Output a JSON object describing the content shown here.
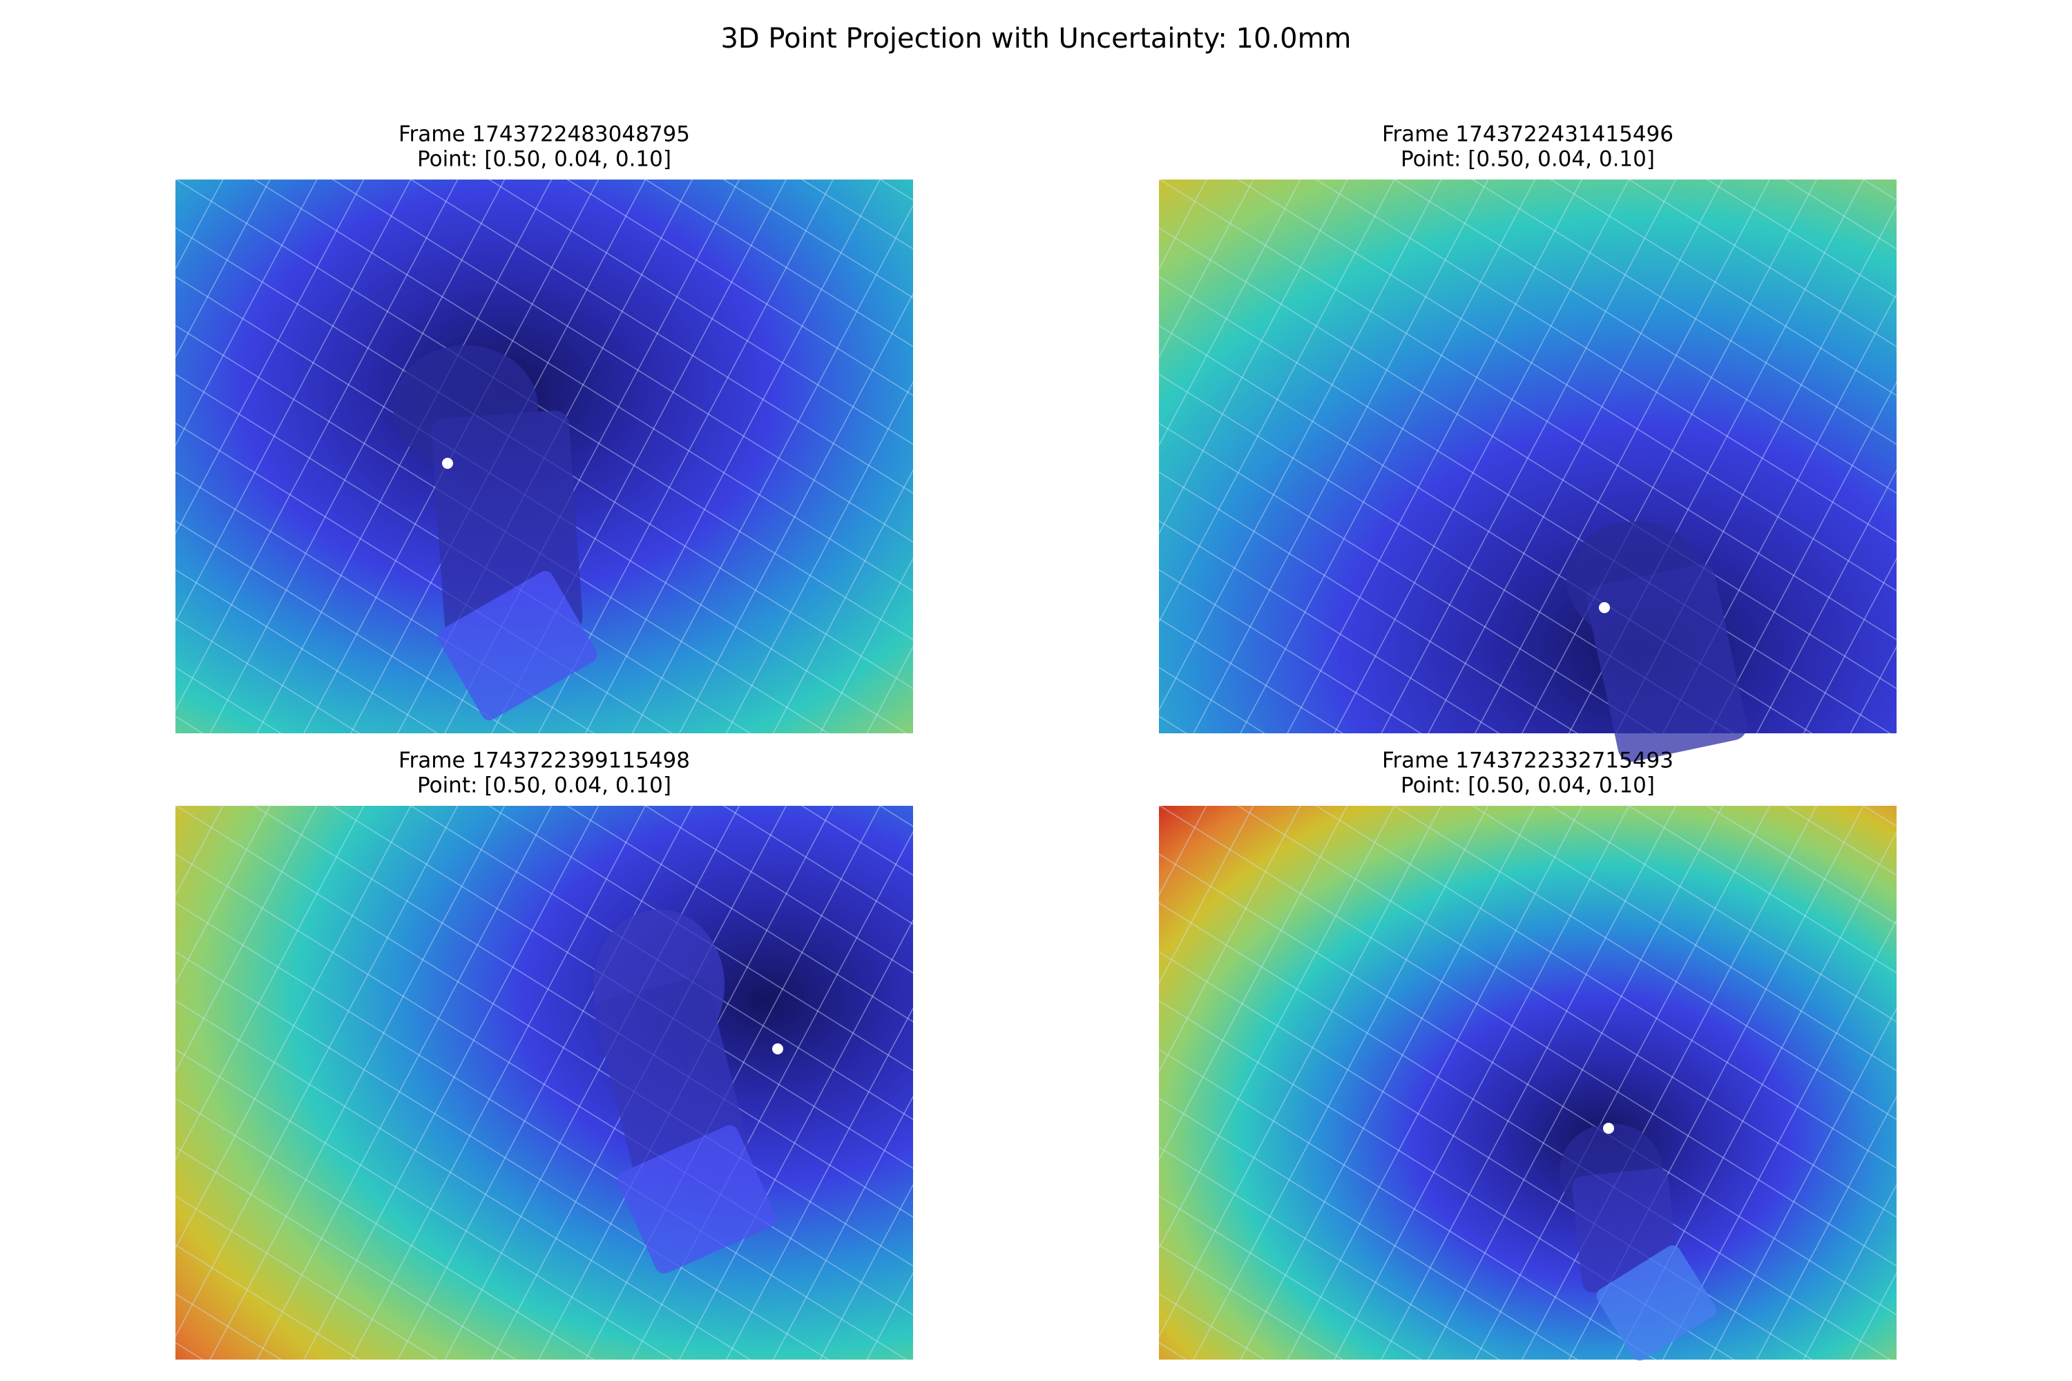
{
  "title": "3D Point Projection with Uncertainty: 10.0mm",
  "panels": [
    {
      "frame": "Frame 1743722483048795",
      "point": "Point: [0.50, 0.04, 0.10]"
    },
    {
      "frame": "Frame 1743722431415496",
      "point": "Point: [0.50, 0.04, 0.10]"
    },
    {
      "frame": "Frame 1743722399115498",
      "point": "Point: [0.50, 0.04, 0.10]"
    },
    {
      "frame": "Frame 1743722332715493",
      "point": "Point: [0.50, 0.04, 0.10]"
    }
  ]
}
